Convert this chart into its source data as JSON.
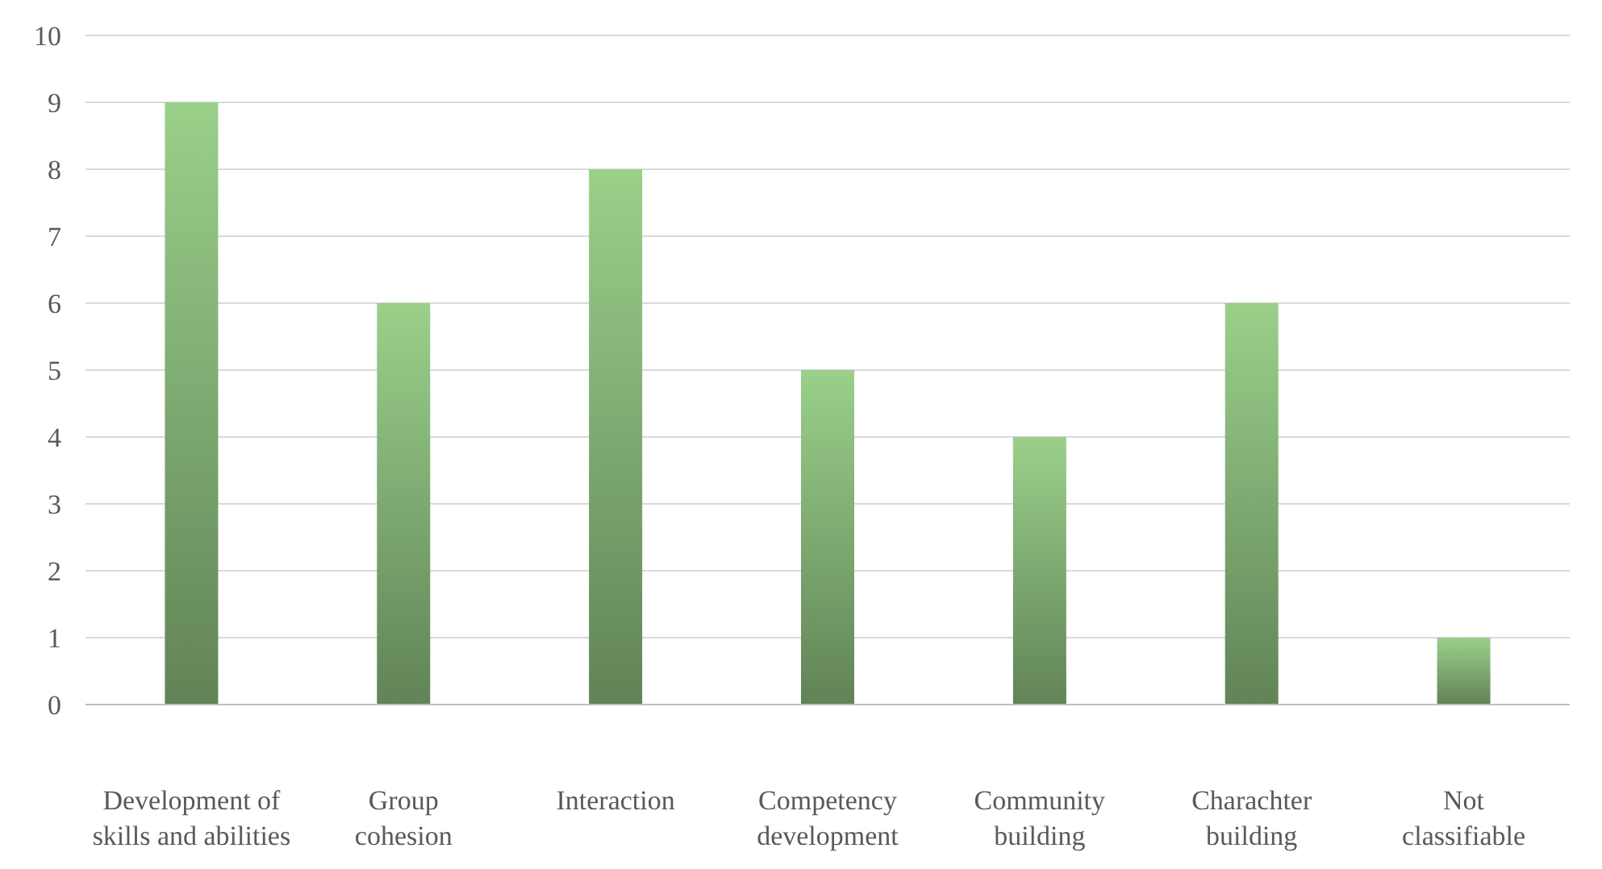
{
  "chart_data": {
    "type": "bar",
    "categories": [
      "Development of skills and abilities",
      "Group cohesion",
      "Interaction",
      "Competency development",
      "Community building",
      "Charachter building",
      "Not classifiable"
    ],
    "values": [
      9,
      6,
      8,
      5,
      4,
      6,
      1
    ],
    "color": "#9ad08a",
    "ylim": [
      0,
      10
    ],
    "yticks": [
      0,
      1,
      2,
      3,
      4,
      5,
      6,
      7,
      8,
      9,
      10
    ],
    "grid": "y"
  }
}
